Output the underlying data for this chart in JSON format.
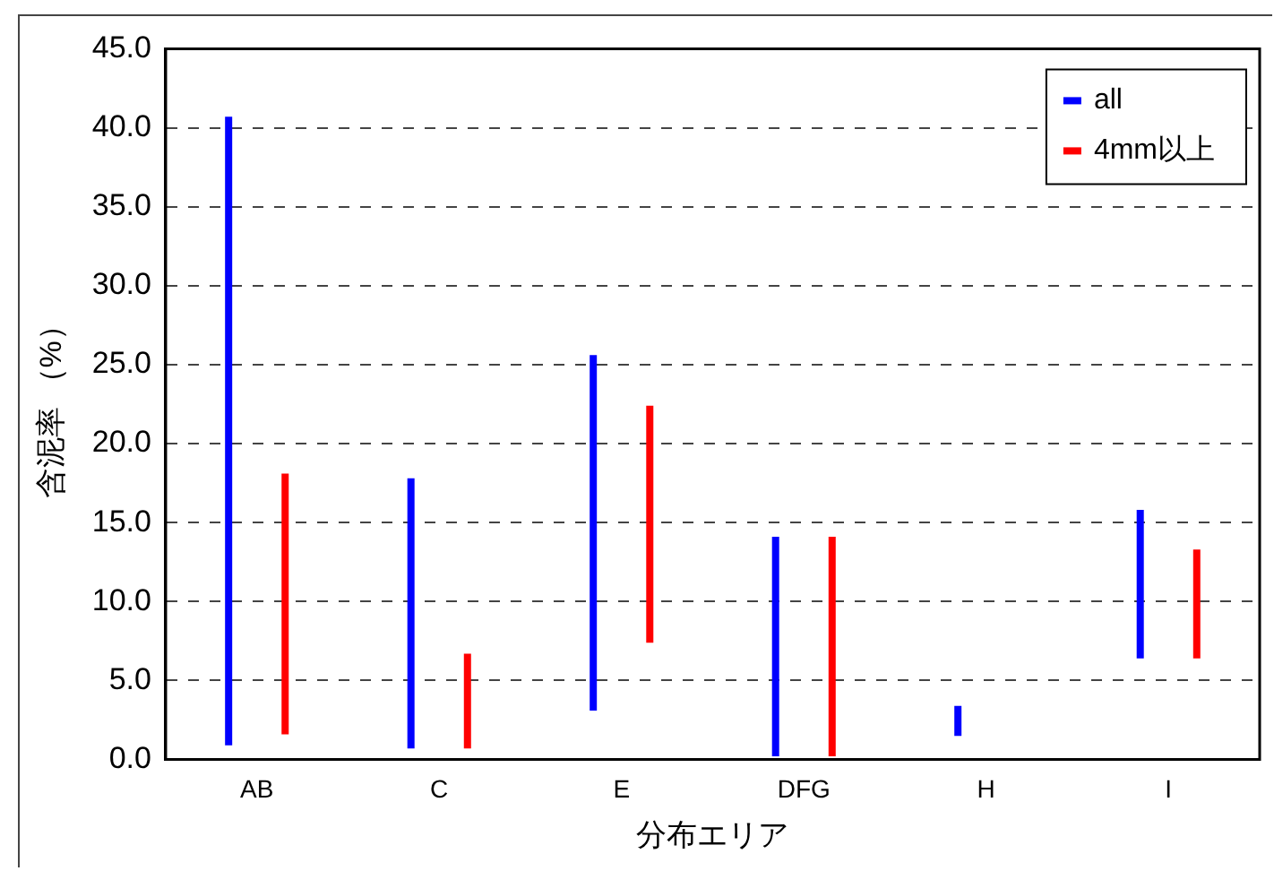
{
  "chart_data": {
    "type": "bar",
    "xlabel": "分布エリア",
    "ylabel": "含泥率 （%）",
    "categories": [
      "AB",
      "C",
      "E",
      "DFG",
      "H",
      "I"
    ],
    "series": [
      {
        "name": "all",
        "color": "#0000ff",
        "base": [
          0.9,
          0.7,
          3.1,
          0.2,
          1.5,
          6.4
        ],
        "values": [
          39.8,
          17.1,
          22.5,
          13.9,
          1.9,
          9.4
        ]
      },
      {
        "name": "4mm以上",
        "color": "#ff0000",
        "base": [
          1.6,
          0.7,
          7.4,
          0.2,
          null,
          6.4
        ],
        "values": [
          16.5,
          6.0,
          15.0,
          13.9,
          null,
          6.9
        ]
      }
    ],
    "ylim": [
      0,
      45
    ],
    "yticks": [
      {
        "value": 0,
        "label": "0.0"
      },
      {
        "value": 5,
        "label": "5.0"
      },
      {
        "value": 10,
        "label": "10.0"
      },
      {
        "value": 15,
        "label": "15.0"
      },
      {
        "value": 20,
        "label": "20.0"
      },
      {
        "value": 25,
        "label": "25.0"
      },
      {
        "value": 30,
        "label": "30.0"
      },
      {
        "value": 35,
        "label": "35.0"
      },
      {
        "value": 40,
        "label": "40.0"
      },
      {
        "value": 45,
        "label": "45.0"
      }
    ],
    "grid": "y",
    "legend": "top right"
  }
}
